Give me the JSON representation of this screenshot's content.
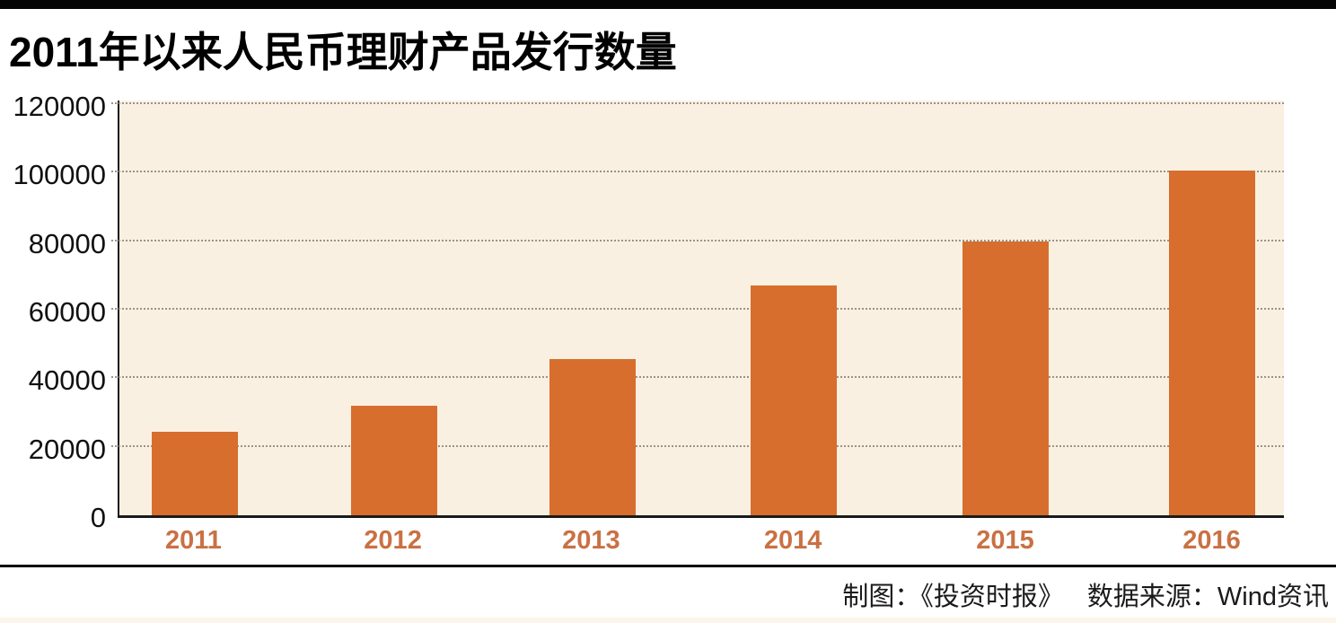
{
  "page": {
    "title": "2011年以来人民币理财产品发行数量"
  },
  "footer": {
    "credit": "制图：《投资时报》",
    "source": "数据来源：Wind资讯"
  },
  "colors": {
    "top_bar": "#050505",
    "bar": "#d76e2d",
    "plot_bg": "#faf0e2",
    "axis": "#1a1a1a",
    "gridline": "#9b938a",
    "x_label": "#c97144",
    "y_label": "#111111",
    "bottom_strip": "#fdf5e9"
  },
  "chart_data": {
    "type": "bar",
    "title": "2011年以来人民币理财产品发行数量",
    "categories": [
      "2011",
      "2012",
      "2013",
      "2014",
      "2015",
      "2016"
    ],
    "values": [
      24500,
      32000,
      45500,
      67000,
      80000,
      100500
    ],
    "xlabel": "",
    "ylabel": "",
    "ylim": [
      0,
      120000
    ],
    "yticks": [
      0,
      20000,
      40000,
      60000,
      80000,
      100000,
      120000
    ],
    "ytick_labels": [
      "0",
      "20000",
      "40000",
      "60000",
      "80000",
      "100000",
      "120000"
    ],
    "grid": "horizontal-dotted",
    "legend_position": "none",
    "bar_color": "#d76e2d",
    "plot_background": "#faf0e2"
  }
}
